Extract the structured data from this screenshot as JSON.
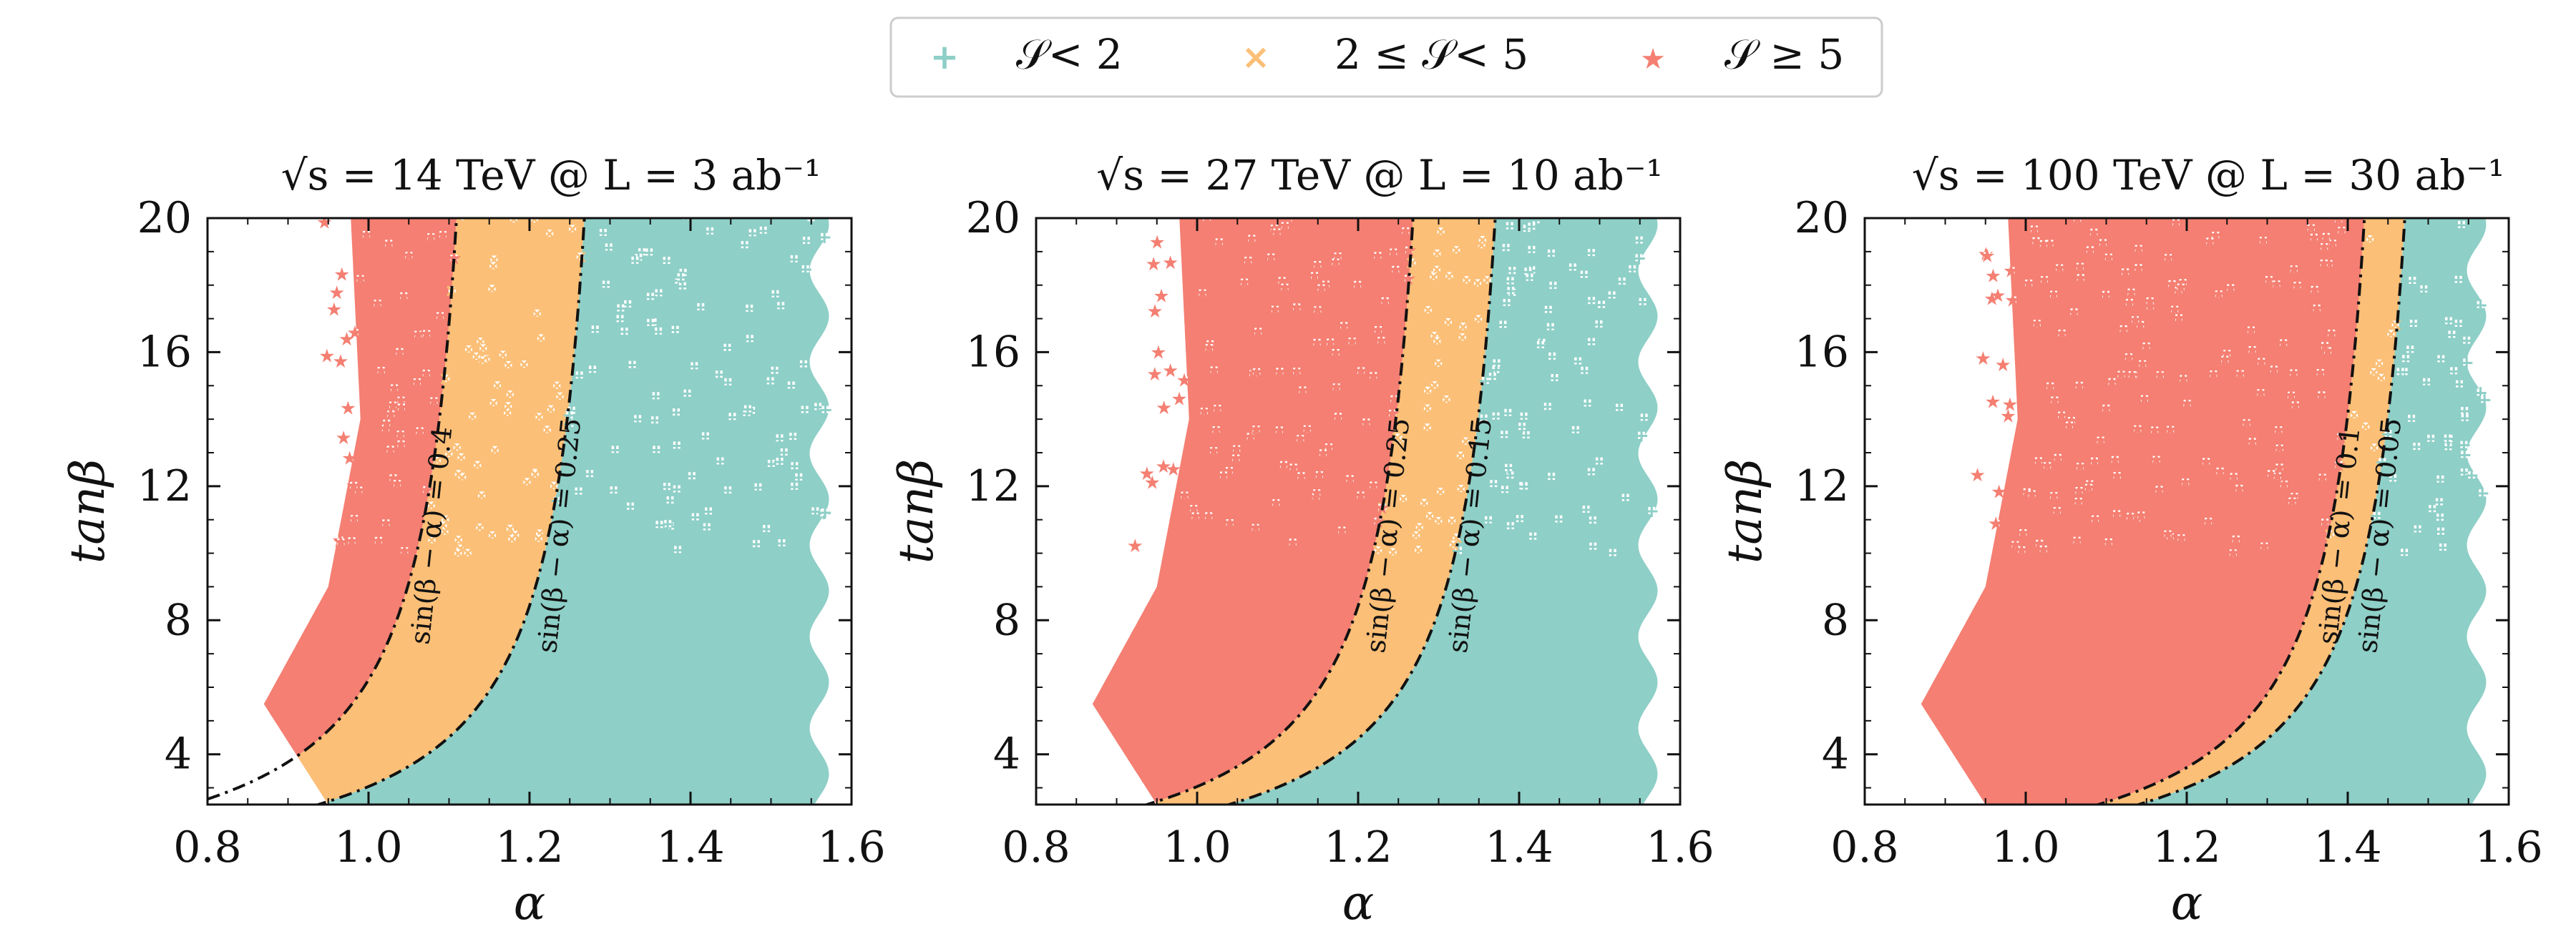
{
  "legend": {
    "items": [
      {
        "label": "𝒮< 2",
        "marker": "+",
        "color": "#8ecfc7"
      },
      {
        "label": "2 ≤ 𝒮< 5",
        "marker": "×",
        "color": "#fbbf77"
      },
      {
        "label": "𝒮 ≥ 5",
        "marker": "★",
        "color": "#f47f72"
      }
    ]
  },
  "chart_data": [
    {
      "type": "scatter",
      "title": "√s = 14 TeV @ L = 3 ab⁻¹",
      "xlabel": "α",
      "ylabel": "tanβ",
      "xlim": [
        0.8,
        1.6
      ],
      "ylim": [
        2.5,
        20
      ],
      "xticks": [
        "0.8",
        "1.0",
        "1.2",
        "1.4",
        "1.6"
      ],
      "yticks": [
        "4",
        "8",
        "12",
        "16",
        "20"
      ],
      "xtick_values": [
        0.8,
        1.0,
        1.2,
        1.4,
        1.6
      ],
      "ytick_values": [
        4,
        8,
        12,
        16,
        20
      ],
      "contours": [
        {
          "label": "sin(β − α) = 0.4",
          "s": 0.4
        },
        {
          "label": "sin(β − α) = 0.25",
          "s": 0.25
        }
      ],
      "regions": {
        "low": {
          "legend": "𝒮< 2",
          "description": "α beyond sin(β−α)=0.25 curve"
        },
        "mid": {
          "legend": "2 ≤ 𝒮< 5",
          "description": "between sin(β−α)=0.4 and 0.25"
        },
        "high": {
          "legend": "𝒮 ≥ 5",
          "description": "α below sin(β−α)=0.4 curve"
        }
      }
    },
    {
      "type": "scatter",
      "title": "√s = 27 TeV @ L = 10 ab⁻¹",
      "xlabel": "α",
      "ylabel": "tanβ",
      "xlim": [
        0.8,
        1.6
      ],
      "ylim": [
        2.5,
        20
      ],
      "xticks": [
        "0.8",
        "1.0",
        "1.2",
        "1.4",
        "1.6"
      ],
      "yticks": [
        "4",
        "8",
        "12",
        "16",
        "20"
      ],
      "xtick_values": [
        0.8,
        1.0,
        1.2,
        1.4,
        1.6
      ],
      "ytick_values": [
        4,
        8,
        12,
        16,
        20
      ],
      "contours": [
        {
          "label": "sin(β − α) = 0.25",
          "s": 0.25
        },
        {
          "label": "sin(β − α) = 0.15",
          "s": 0.15
        }
      ]
    },
    {
      "type": "scatter",
      "title": "√s = 100 TeV @ L = 30 ab⁻¹",
      "xlabel": "α",
      "ylabel": "tanβ",
      "xlim": [
        0.8,
        1.6
      ],
      "ylim": [
        2.5,
        20
      ],
      "xticks": [
        "0.8",
        "1.0",
        "1.2",
        "1.4",
        "1.6"
      ],
      "yticks": [
        "4",
        "8",
        "12",
        "16",
        "20"
      ],
      "xtick_values": [
        0.8,
        1.0,
        1.2,
        1.4,
        1.6
      ],
      "ytick_values": [
        4,
        8,
        12,
        16,
        20
      ],
      "contours": [
        {
          "label": "sin(β − α) = 0.1",
          "s": 0.1
        },
        {
          "label": "sin(β − α) = 0.05",
          "s": 0.05
        }
      ]
    }
  ]
}
